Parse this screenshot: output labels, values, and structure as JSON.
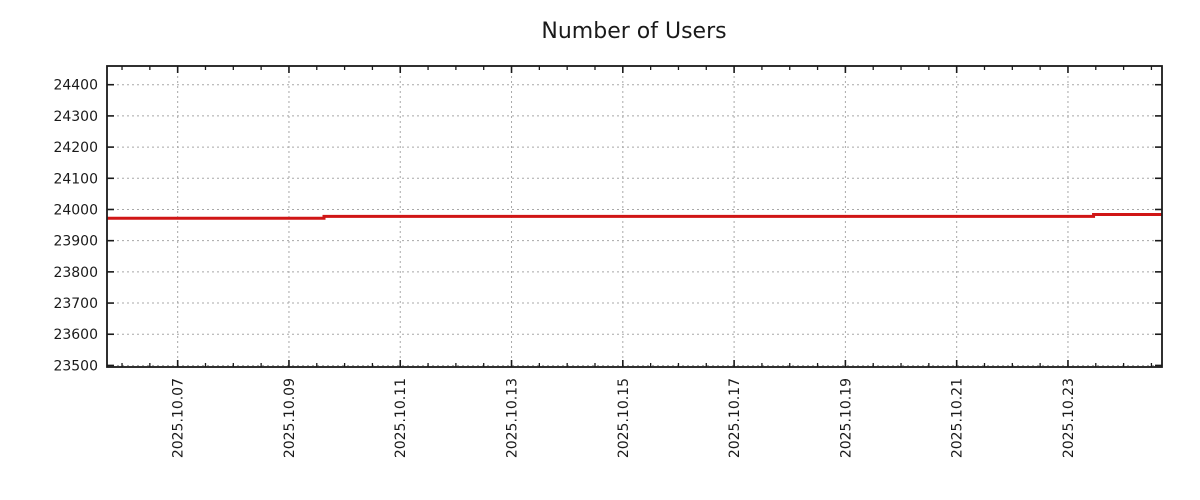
{
  "chart_data": {
    "type": "line",
    "line_style": "step",
    "title": "Number of Users",
    "xlabel": "",
    "ylabel": "",
    "legend": "none",
    "grid": true,
    "colors": {
      "series": "#d01616",
      "grid": "#a8a8a8",
      "axis": "#1a1a1a",
      "text": "#1a1a1a",
      "background": "#ffffff"
    },
    "xlim_day_of_oct_2025": [
      5.73,
      24.69
    ],
    "ylim": [
      23495,
      24460
    ],
    "y_ticks": [
      {
        "value": 23500,
        "label": "23500"
      },
      {
        "value": 23600,
        "label": "23600"
      },
      {
        "value": 23700,
        "label": "23700"
      },
      {
        "value": 23800,
        "label": "23800"
      },
      {
        "value": 23900,
        "label": "23900"
      },
      {
        "value": 24000,
        "label": "24000"
      },
      {
        "value": 24100,
        "label": "24100"
      },
      {
        "value": 24200,
        "label": "24200"
      },
      {
        "value": 24300,
        "label": "24300"
      },
      {
        "value": 24400,
        "label": "24400"
      }
    ],
    "x_ticks": [
      {
        "day": 7,
        "label": "2025.10.07"
      },
      {
        "day": 9,
        "label": "2025.10.09"
      },
      {
        "day": 11,
        "label": "2025.10.11"
      },
      {
        "day": 13,
        "label": "2025.10.13"
      },
      {
        "day": 15,
        "label": "2025.10.15"
      },
      {
        "day": 17,
        "label": "2025.10.17"
      },
      {
        "day": 19,
        "label": "2025.10.19"
      },
      {
        "day": 21,
        "label": "2025.10.21"
      },
      {
        "day": 23,
        "label": "2025.10.23"
      }
    ],
    "x_minor_ticks": {
      "from": 6.0,
      "to": 24.5,
      "step": 0.5
    },
    "series": [
      {
        "name": "Number of Users",
        "color": "#d01616",
        "stroke_width": 3,
        "segments": [
          {
            "from_day": 5.73,
            "to_day": 9.63,
            "value": 23972,
            "from_date": "2025.10.05",
            "to_date": "2025.10.09"
          },
          {
            "from_day": 9.63,
            "to_day": 23.46,
            "value": 23978,
            "from_date": "2025.10.09",
            "to_date": "2025.10.23"
          },
          {
            "from_day": 23.46,
            "to_day": 24.69,
            "value": 23984,
            "from_date": "2025.10.23",
            "to_date": "2025.10.24"
          }
        ]
      }
    ]
  }
}
